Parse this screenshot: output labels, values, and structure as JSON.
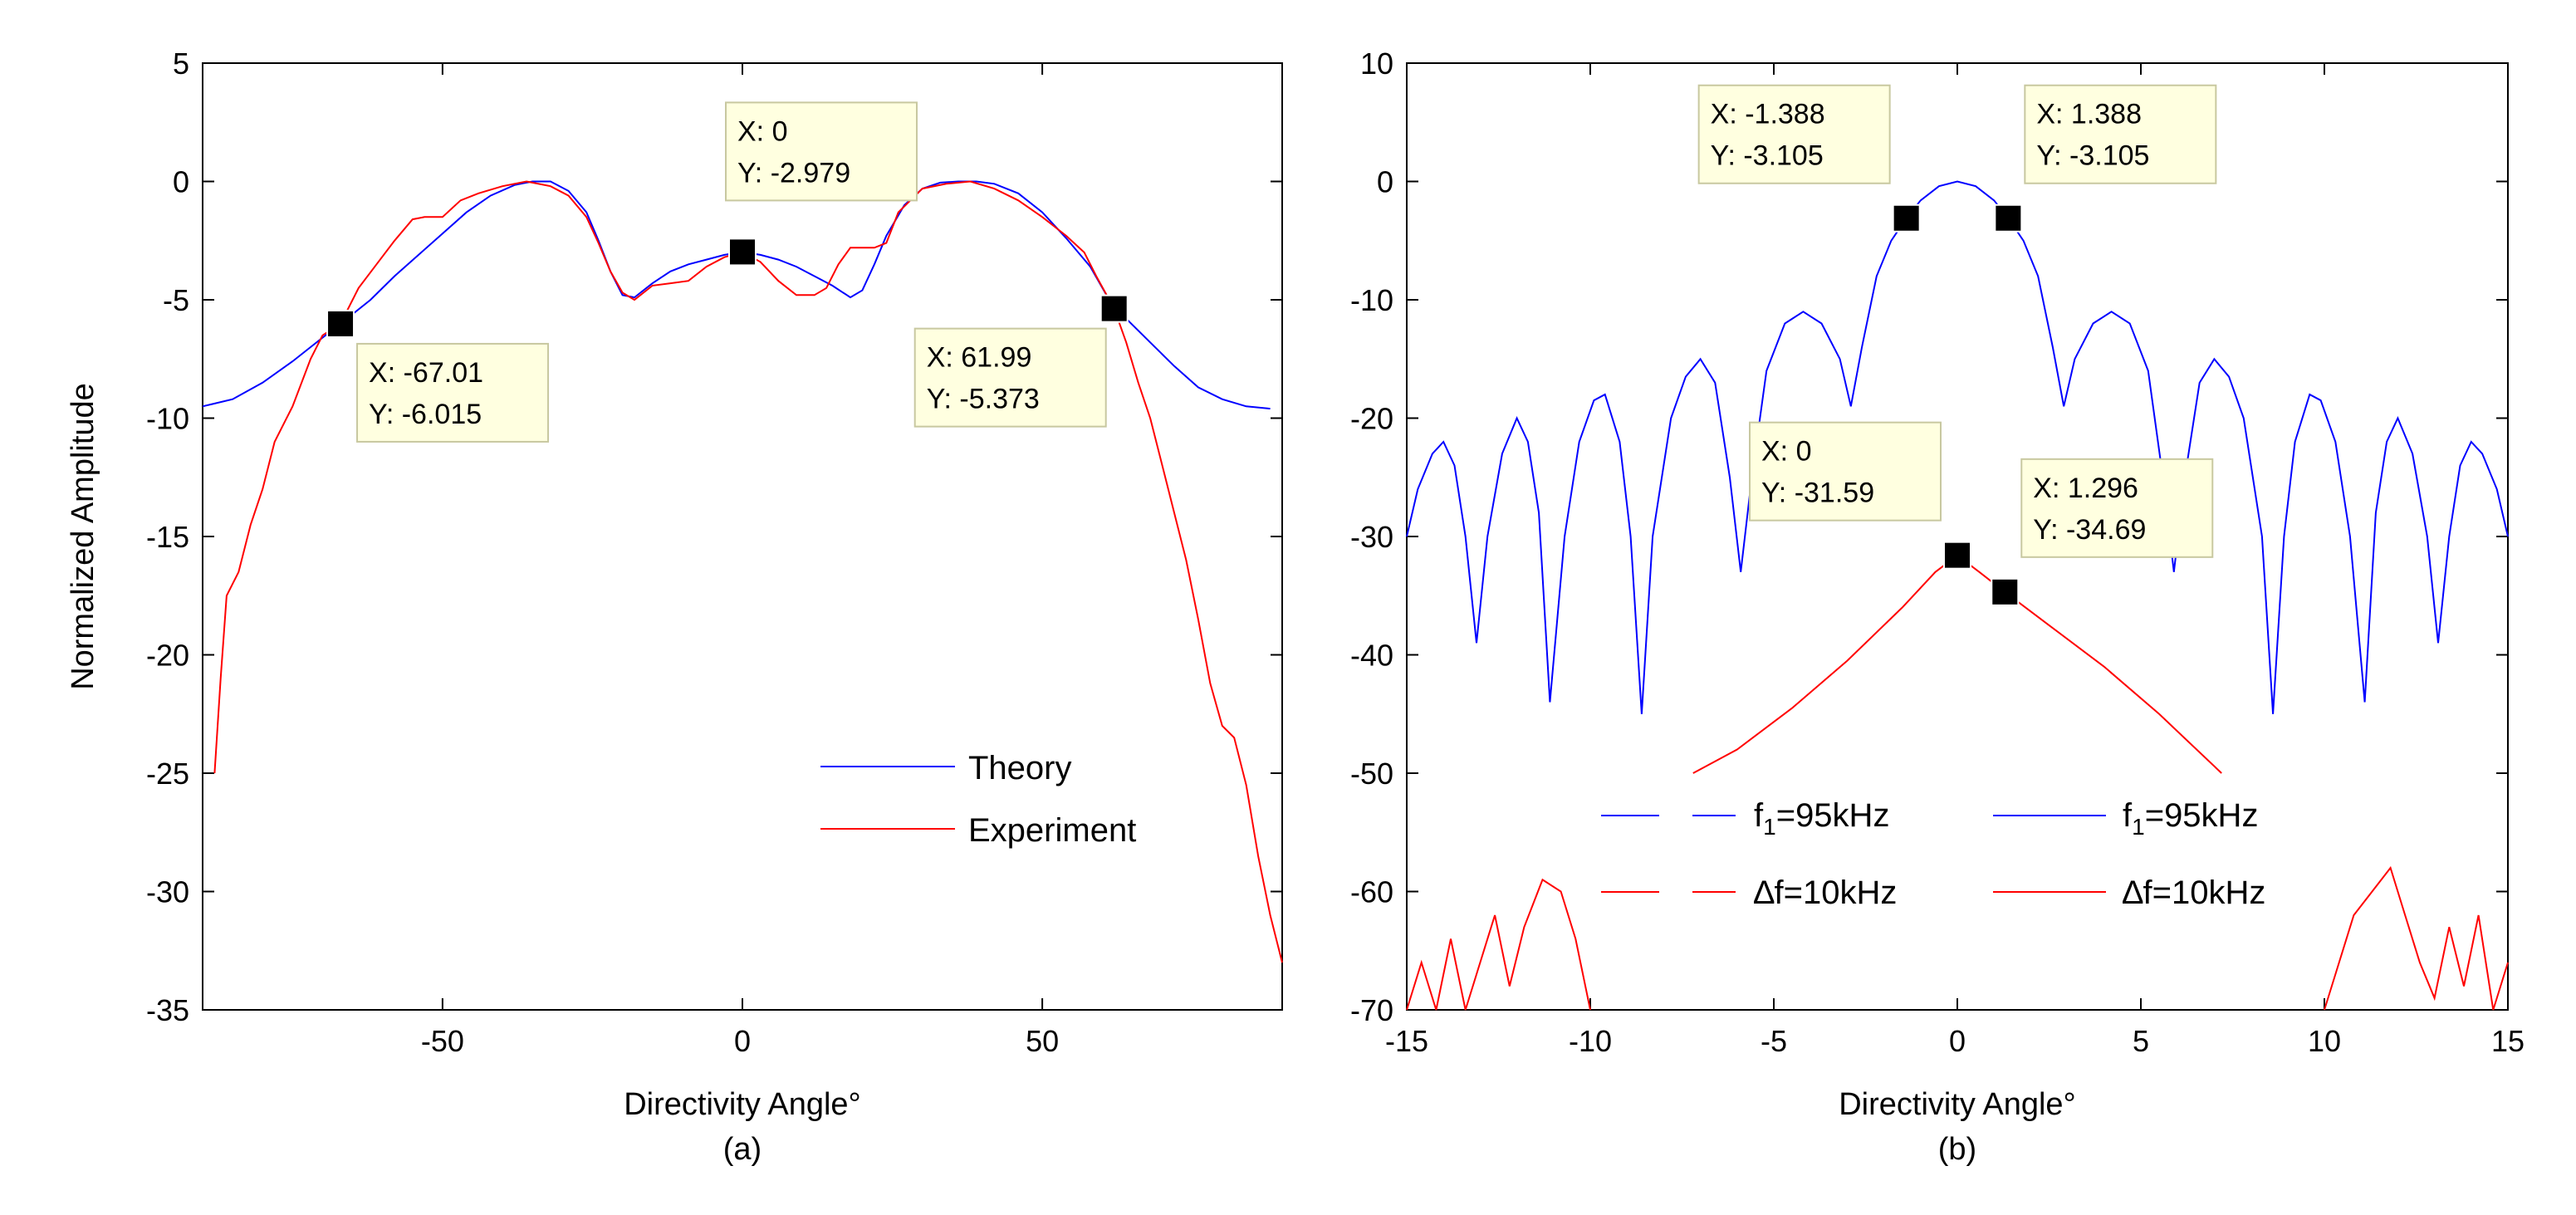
{
  "chart_data": [
    {
      "type": "line",
      "panel": "(a)",
      "xlabel": "Directivity Angle°",
      "ylabel": "Normalized Amplitude",
      "caption": "(a)",
      "xlim": [
        -90,
        90
      ],
      "ylim": [
        -35,
        5
      ],
      "xticks": [
        -50,
        0,
        50
      ],
      "yticks": [
        5,
        0,
        -5,
        -10,
        -15,
        -20,
        -25,
        -30,
        -35
      ],
      "legend": {
        "position": "lower-right",
        "entries": [
          {
            "label": "Theory",
            "color": "#0000ff",
            "style": "solid"
          },
          {
            "label": "Experiment",
            "color": "#ff0000",
            "style": "solid"
          }
        ]
      },
      "series": [
        {
          "name": "Theory",
          "color": "#0000ff",
          "points": [
            [
              -90,
              -9.5
            ],
            [
              -85,
              -9.2
            ],
            [
              -80,
              -8.5
            ],
            [
              -75,
              -7.6
            ],
            [
              -70,
              -6.6
            ],
            [
              -67.01,
              -6.015
            ],
            [
              -62,
              -5.0
            ],
            [
              -58,
              -4.0
            ],
            [
              -54,
              -3.1
            ],
            [
              -50,
              -2.2
            ],
            [
              -46,
              -1.3
            ],
            [
              -42,
              -0.6
            ],
            [
              -38,
              -0.15
            ],
            [
              -35,
              0.0
            ],
            [
              -32,
              0.0
            ],
            [
              -29,
              -0.4
            ],
            [
              -26,
              -1.3
            ],
            [
              -24,
              -2.5
            ],
            [
              -22,
              -3.8
            ],
            [
              -20,
              -4.8
            ],
            [
              -18,
              -4.9
            ],
            [
              -15,
              -4.3
            ],
            [
              -12,
              -3.8
            ],
            [
              -9,
              -3.5
            ],
            [
              -6,
              -3.3
            ],
            [
              -3,
              -3.1
            ],
            [
              0,
              -2.979
            ],
            [
              3,
              -3.1
            ],
            [
              6,
              -3.3
            ],
            [
              9,
              -3.6
            ],
            [
              12,
              -4.0
            ],
            [
              15,
              -4.4
            ],
            [
              18,
              -4.9
            ],
            [
              20,
              -4.6
            ],
            [
              22,
              -3.5
            ],
            [
              24,
              -2.3
            ],
            [
              27,
              -1.0
            ],
            [
              30,
              -0.3
            ],
            [
              33,
              -0.05
            ],
            [
              36,
              0.0
            ],
            [
              39,
              0.0
            ],
            [
              42,
              -0.1
            ],
            [
              46,
              -0.5
            ],
            [
              50,
              -1.3
            ],
            [
              54,
              -2.4
            ],
            [
              58,
              -3.6
            ],
            [
              61.99,
              -5.373
            ],
            [
              64,
              -5.8
            ],
            [
              68,
              -6.8
            ],
            [
              72,
              -7.8
            ],
            [
              76,
              -8.7
            ],
            [
              80,
              -9.2
            ],
            [
              84,
              -9.5
            ],
            [
              88,
              -9.6
            ]
          ]
        },
        {
          "name": "Experiment",
          "color": "#ff0000",
          "points": [
            [
              -88,
              -25
            ],
            [
              -87,
              -21
            ],
            [
              -86,
              -17.5
            ],
            [
              -84,
              -16.5
            ],
            [
              -82,
              -14.5
            ],
            [
              -80,
              -13
            ],
            [
              -78,
              -11
            ],
            [
              -75,
              -9.5
            ],
            [
              -72,
              -7.5
            ],
            [
              -70,
              -6.5
            ],
            [
              -67.01,
              -6.015
            ],
            [
              -64,
              -4.5
            ],
            [
              -61,
              -3.5
            ],
            [
              -58,
              -2.5
            ],
            [
              -55,
              -1.6
            ],
            [
              -53,
              -1.5
            ],
            [
              -50,
              -1.5
            ],
            [
              -47,
              -0.8
            ],
            [
              -44,
              -0.5
            ],
            [
              -40,
              -0.2
            ],
            [
              -36,
              0.0
            ],
            [
              -32,
              -0.2
            ],
            [
              -29,
              -0.6
            ],
            [
              -26,
              -1.5
            ],
            [
              -24,
              -2.6
            ],
            [
              -22,
              -3.8
            ],
            [
              -20,
              -4.7
            ],
            [
              -18,
              -5.0
            ],
            [
              -15,
              -4.4
            ],
            [
              -12,
              -4.3
            ],
            [
              -9,
              -4.2
            ],
            [
              -6,
              -3.6
            ],
            [
              -3,
              -3.2
            ],
            [
              0,
              -2.979
            ],
            [
              3,
              -3.4
            ],
            [
              6,
              -4.2
            ],
            [
              9,
              -4.8
            ],
            [
              12,
              -4.8
            ],
            [
              14,
              -4.5
            ],
            [
              16,
              -3.5
            ],
            [
              18,
              -2.8
            ],
            [
              22,
              -2.8
            ],
            [
              24,
              -2.6
            ],
            [
              26,
              -1.3
            ],
            [
              30,
              -0.3
            ],
            [
              34,
              -0.1
            ],
            [
              38,
              0.0
            ],
            [
              42,
              -0.3
            ],
            [
              46,
              -0.8
            ],
            [
              50,
              -1.5
            ],
            [
              54,
              -2.3
            ],
            [
              57,
              -3.0
            ],
            [
              59,
              -4.0
            ],
            [
              61.99,
              -5.373
            ],
            [
              64,
              -6.8
            ],
            [
              66,
              -8.5
            ],
            [
              68,
              -10
            ],
            [
              70,
              -12
            ],
            [
              72,
              -14
            ],
            [
              74,
              -16
            ],
            [
              76,
              -18.5
            ],
            [
              78,
              -21.2
            ],
            [
              80,
              -23.0
            ],
            [
              82,
              -23.5
            ],
            [
              84,
              -25.5
            ],
            [
              86,
              -28.5
            ],
            [
              88,
              -31
            ],
            [
              90,
              -33
            ]
          ]
        }
      ],
      "datatips": [
        {
          "x": -67.01,
          "y": -6.015,
          "label_x": "X: -67.01",
          "label_y": "Y: -6.015"
        },
        {
          "x": 0,
          "y": -2.979,
          "label_x": "X: 0",
          "label_y": "Y: -2.979"
        },
        {
          "x": 61.99,
          "y": -5.373,
          "label_x": "X: 61.99",
          "label_y": "Y: -5.373"
        }
      ]
    },
    {
      "type": "line",
      "panel": "(b)",
      "xlabel": "Directivity Angle°",
      "ylabel": "",
      "caption": "(b)",
      "xlim": [
        -15,
        15
      ],
      "ylim": [
        -70,
        10
      ],
      "xticks": [
        -15,
        -10,
        -5,
        0,
        5,
        10,
        15
      ],
      "yticks": [
        10,
        0,
        -10,
        -20,
        -30,
        -40,
        -50,
        -60,
        -70
      ],
      "legend": {
        "position": "lower-center",
        "entries": [
          {
            "label": "f",
            "sub": "1",
            "label_rest": "=95kHz",
            "color": "#0000ff",
            "style": "dashed"
          },
          {
            "label": "f",
            "sub": "1",
            "label_rest": "=95kHz",
            "color": "#0000ff",
            "style": "solid"
          },
          {
            "label": "∆f=10kHz",
            "color": "#ff0000",
            "style": "dashed"
          },
          {
            "label": "∆f=10kHz",
            "color": "#ff0000",
            "style": "solid"
          }
        ]
      },
      "series": [
        {
          "name": "f1=95kHz (solid)",
          "color": "#0000ff",
          "points": [
            [
              -15,
              -30
            ],
            [
              -14.7,
              -26
            ],
            [
              -14.3,
              -23
            ],
            [
              -14,
              -22
            ],
            [
              -13.7,
              -24
            ],
            [
              -13.4,
              -30
            ],
            [
              -13.1,
              -39
            ],
            [
              -12.8,
              -30
            ],
            [
              -12.4,
              -23
            ],
            [
              -12,
              -20
            ],
            [
              -11.7,
              -22
            ],
            [
              -11.4,
              -28
            ],
            [
              -11.1,
              -44
            ],
            [
              -10.7,
              -30
            ],
            [
              -10.3,
              -22
            ],
            [
              -9.9,
              -18.5
            ],
            [
              -9.6,
              -18
            ],
            [
              -9.2,
              -22
            ],
            [
              -8.9,
              -30
            ],
            [
              -8.6,
              -45
            ],
            [
              -8.3,
              -30
            ],
            [
              -7.8,
              -20
            ],
            [
              -7.4,
              -16.5
            ],
            [
              -7,
              -15
            ],
            [
              -6.6,
              -17
            ],
            [
              -6.2,
              -25
            ],
            [
              -5.9,
              -33
            ],
            [
              -5.6,
              -25
            ],
            [
              -5.2,
              -16
            ],
            [
              -4.7,
              -12
            ],
            [
              -4.2,
              -11
            ],
            [
              -3.7,
              -12
            ],
            [
              -3.2,
              -15
            ],
            [
              -2.9,
              -19
            ],
            [
              -2.6,
              -14
            ],
            [
              -2.2,
              -8
            ],
            [
              -1.8,
              -5
            ],
            [
              -1.388,
              -3.105
            ],
            [
              -1,
              -1.6
            ],
            [
              -0.5,
              -0.4
            ],
            [
              0,
              0
            ],
            [
              0.5,
              -0.4
            ],
            [
              1,
              -1.6
            ],
            [
              1.388,
              -3.105
            ],
            [
              1.8,
              -5
            ],
            [
              2.2,
              -8
            ],
            [
              2.6,
              -14
            ],
            [
              2.9,
              -19
            ],
            [
              3.2,
              -15
            ],
            [
              3.7,
              -12
            ],
            [
              4.2,
              -11
            ],
            [
              4.7,
              -12
            ],
            [
              5.2,
              -16
            ],
            [
              5.6,
              -25
            ],
            [
              5.9,
              -33
            ],
            [
              6.2,
              -25
            ],
            [
              6.6,
              -17
            ],
            [
              7,
              -15
            ],
            [
              7.4,
              -16.5
            ],
            [
              7.8,
              -20
            ],
            [
              8.3,
              -30
            ],
            [
              8.6,
              -45
            ],
            [
              8.9,
              -30
            ],
            [
              9.2,
              -22
            ],
            [
              9.6,
              -18
            ],
            [
              9.9,
              -18.5
            ],
            [
              10.3,
              -22
            ],
            [
              10.7,
              -30
            ],
            [
              11.1,
              -44
            ],
            [
              11.4,
              -28
            ],
            [
              11.7,
              -22
            ],
            [
              12,
              -20
            ],
            [
              12.4,
              -23
            ],
            [
              12.8,
              -30
            ],
            [
              13.1,
              -39
            ],
            [
              13.4,
              -30
            ],
            [
              13.7,
              -24
            ],
            [
              14,
              -22
            ],
            [
              14.3,
              -23
            ],
            [
              14.7,
              -26
            ],
            [
              15,
              -30
            ]
          ]
        },
        {
          "name": "Δf=10kHz (solid)",
          "color": "#ff0000",
          "points": [
            [
              -7.2,
              -50
            ],
            [
              -6,
              -48
            ],
            [
              -4.5,
              -44.5
            ],
            [
              -3,
              -40.5
            ],
            [
              -1.5,
              -36
            ],
            [
              -0.6,
              -33
            ],
            [
              0,
              -31.59
            ],
            [
              0.6,
              -33
            ],
            [
              1.296,
              -34.69
            ],
            [
              2.5,
              -37.5
            ],
            [
              4,
              -41
            ],
            [
              5.5,
              -45
            ],
            [
              7.2,
              -50
            ]
          ]
        },
        {
          "name": "Δf=10kHz lower sidelobes",
          "color": "#ff0000",
          "points": [
            [
              -15,
              -70
            ],
            [
              -14.6,
              -66
            ],
            [
              -14.2,
              -70
            ],
            [
              -13.8,
              -64
            ],
            [
              -13.4,
              -70
            ],
            [
              -13,
              -66
            ],
            [
              -12.6,
              -62
            ],
            [
              -12.2,
              -68
            ],
            [
              -11.8,
              -63
            ],
            [
              -11.3,
              -59
            ],
            [
              -10.8,
              -60
            ],
            [
              -10.4,
              -64
            ],
            [
              -10,
              -70
            ]
          ]
        },
        {
          "name": "Δf=10kHz lower sidelobes right",
          "color": "#ff0000",
          "points": [
            [
              10,
              -70
            ],
            [
              10.4,
              -66
            ],
            [
              10.8,
              -62
            ],
            [
              11.3,
              -60
            ],
            [
              11.8,
              -58
            ],
            [
              12.2,
              -62
            ],
            [
              12.6,
              -66
            ],
            [
              13,
              -69
            ],
            [
              13.4,
              -63
            ],
            [
              13.8,
              -68
            ],
            [
              14.2,
              -62
            ],
            [
              14.6,
              -70
            ],
            [
              15,
              -66
            ]
          ]
        }
      ],
      "datatips": [
        {
          "x": -1.388,
          "y": -3.105,
          "label_x": "X: -1.388",
          "label_y": "Y: -3.105"
        },
        {
          "x": 1.388,
          "y": -3.105,
          "label_x": "X: 1.388",
          "label_y": "Y: -3.105"
        },
        {
          "x": 0,
          "y": -31.59,
          "label_x": "X: 0",
          "label_y": "Y: -31.59"
        },
        {
          "x": 1.296,
          "y": -34.69,
          "label_x": "X: 1.296",
          "label_y": "Y: -34.69"
        }
      ]
    }
  ]
}
